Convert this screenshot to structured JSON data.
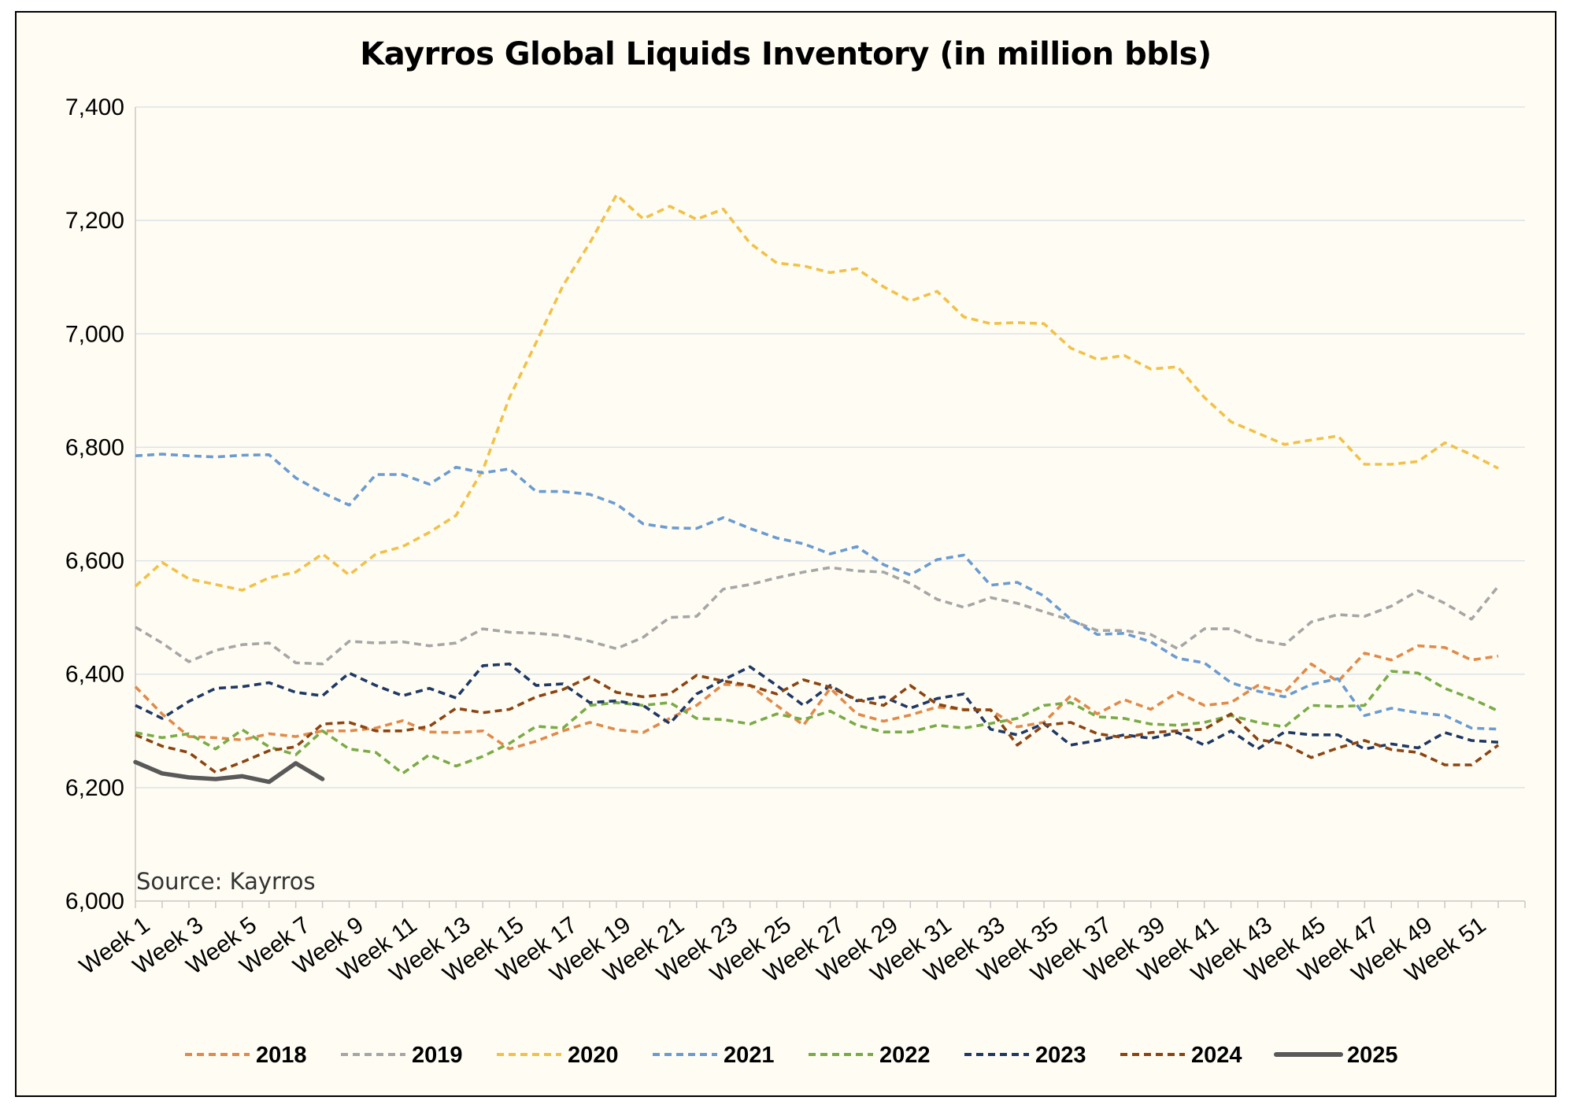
{
  "chart_data": {
    "type": "line",
    "title": "Kayrros Global Liquids Inventory (in million bbls)",
    "source": "Source: Kayrros",
    "xlabel": "",
    "ylabel": "",
    "ylim": [
      6000,
      7400
    ],
    "yticks": [
      "6,000",
      "6,200",
      "6,400",
      "6,600",
      "6,800",
      "7,000",
      "7,200",
      "7,400"
    ],
    "ytick_values": [
      6000,
      6200,
      6400,
      6600,
      6800,
      7000,
      7200,
      7400
    ],
    "xtick_labels": [
      "Week 1",
      "Week 3",
      "Week 5",
      "Week 7",
      "Week 9",
      "Week 11",
      "Week 13",
      "Week 15",
      "Week 17",
      "Week 19",
      "Week 21",
      "Week 23",
      "Week 25",
      "Week 27",
      "Week 29",
      "Week 31",
      "Week 33",
      "Week 35",
      "Week 37",
      "Week 39",
      "Week 41",
      "Week 43",
      "Week 45",
      "Week 47",
      "Week 49",
      "Week 51"
    ],
    "xtick_weeks": [
      1,
      3,
      5,
      7,
      9,
      11,
      13,
      15,
      17,
      19,
      21,
      23,
      25,
      27,
      29,
      31,
      33,
      35,
      37,
      39,
      41,
      43,
      45,
      47,
      49,
      51
    ],
    "x_count": 53,
    "grid": "horizontal",
    "legend_position": "bottom",
    "series": [
      {
        "name": "2018",
        "color": "#e08a4b",
        "dashed": true,
        "values": [
          6378,
          6330,
          6290,
          6288,
          6284,
          6295,
          6290,
          6300,
          6300,
          6305,
          6318,
          6298,
          6297,
          6300,
          6268,
          6282,
          6300,
          6315,
          6302,
          6297,
          6322,
          6345,
          6382,
          6380,
          6345,
          6310,
          6375,
          6330,
          6317,
          6328,
          6342,
          6338,
          6337,
          6307,
          6315,
          6362,
          6330,
          6355,
          6338,
          6368,
          6345,
          6350,
          6380,
          6368,
          6418,
          6387,
          6437,
          6425,
          6450,
          6447,
          6425,
          6432
        ]
      },
      {
        "name": "2019",
        "color": "#a6a6a6",
        "dashed": true,
        "values": [
          6483,
          6455,
          6422,
          6442,
          6452,
          6455,
          6420,
          6418,
          6458,
          6455,
          6457,
          6450,
          6455,
          6480,
          6474,
          6472,
          6468,
          6458,
          6445,
          6465,
          6500,
          6502,
          6550,
          6558,
          6570,
          6580,
          6588,
          6582,
          6580,
          6560,
          6532,
          6518,
          6535,
          6525,
          6510,
          6495,
          6477,
          6477,
          6470,
          6445,
          6480,
          6480,
          6460,
          6452,
          6492,
          6505,
          6502,
          6520,
          6547,
          6525,
          6497,
          6555
        ]
      },
      {
        "name": "2020",
        "color": "#f1c14a",
        "dashed": true,
        "values": [
          6555,
          6597,
          6568,
          6558,
          6548,
          6570,
          6580,
          6612,
          6575,
          6612,
          6625,
          6650,
          6680,
          6760,
          6888,
          6985,
          7085,
          7160,
          7245,
          7203,
          7225,
          7202,
          7220,
          7160,
          7125,
          7120,
          7108,
          7115,
          7083,
          7058,
          7075,
          7030,
          7018,
          7020,
          7018,
          6975,
          6955,
          6962,
          6938,
          6942,
          6888,
          6845,
          6825,
          6805,
          6813,
          6820,
          6770,
          6770,
          6775,
          6808,
          6787,
          6763
        ]
      },
      {
        "name": "2021",
        "color": "#6b9bd1",
        "dashed": true,
        "values": [
          6785,
          6788,
          6785,
          6783,
          6786,
          6787,
          6746,
          6720,
          6698,
          6752,
          6752,
          6735,
          6765,
          6755,
          6762,
          6722,
          6722,
          6717,
          6700,
          6665,
          6658,
          6657,
          6676,
          6657,
          6640,
          6630,
          6612,
          6625,
          6593,
          6575,
          6602,
          6610,
          6557,
          6562,
          6538,
          6497,
          6470,
          6472,
          6457,
          6428,
          6420,
          6385,
          6370,
          6360,
          6382,
          6392,
          6327,
          6340,
          6332,
          6327,
          6305,
          6303
        ]
      },
      {
        "name": "2022",
        "color": "#7aab48",
        "dashed": true,
        "values": [
          6297,
          6288,
          6295,
          6268,
          6302,
          6272,
          6258,
          6300,
          6268,
          6262,
          6225,
          6258,
          6238,
          6255,
          6278,
          6308,
          6305,
          6345,
          6350,
          6345,
          6350,
          6322,
          6320,
          6312,
          6330,
          6320,
          6335,
          6310,
          6298,
          6298,
          6310,
          6305,
          6313,
          6322,
          6345,
          6350,
          6325,
          6322,
          6312,
          6310,
          6315,
          6327,
          6315,
          6307,
          6345,
          6343,
          6345,
          6405,
          6402,
          6375,
          6357,
          6335
        ]
      },
      {
        "name": "2023",
        "color": "#1f3864",
        "dashed": true,
        "values": [
          6345,
          6322,
          6352,
          6375,
          6378,
          6385,
          6368,
          6362,
          6402,
          6380,
          6362,
          6375,
          6358,
          6415,
          6418,
          6380,
          6383,
          6350,
          6353,
          6345,
          6313,
          6365,
          6390,
          6413,
          6380,
          6345,
          6380,
          6353,
          6360,
          6340,
          6357,
          6365,
          6303,
          6293,
          6313,
          6275,
          6283,
          6293,
          6287,
          6297,
          6275,
          6300,
          6268,
          6298,
          6293,
          6293,
          6268,
          6277,
          6270,
          6297,
          6283,
          6280
        ]
      },
      {
        "name": "2024",
        "color": "#8b4513",
        "dashed": true,
        "values": [
          6293,
          6273,
          6262,
          6227,
          6245,
          6265,
          6272,
          6312,
          6315,
          6300,
          6300,
          6308,
          6340,
          6332,
          6338,
          6360,
          6373,
          6395,
          6368,
          6360,
          6365,
          6398,
          6388,
          6380,
          6365,
          6390,
          6377,
          6355,
          6345,
          6380,
          6347,
          6337,
          6337,
          6275,
          6310,
          6315,
          6295,
          6288,
          6297,
          6300,
          6303,
          6330,
          6285,
          6277,
          6253,
          6270,
          6283,
          6267,
          6262,
          6240,
          6240,
          6275
        ]
      },
      {
        "name": "2025",
        "color": "#595959",
        "dashed": false,
        "values": [
          6245,
          6225,
          6218,
          6215,
          6220,
          6210,
          6243,
          6215
        ]
      }
    ]
  }
}
